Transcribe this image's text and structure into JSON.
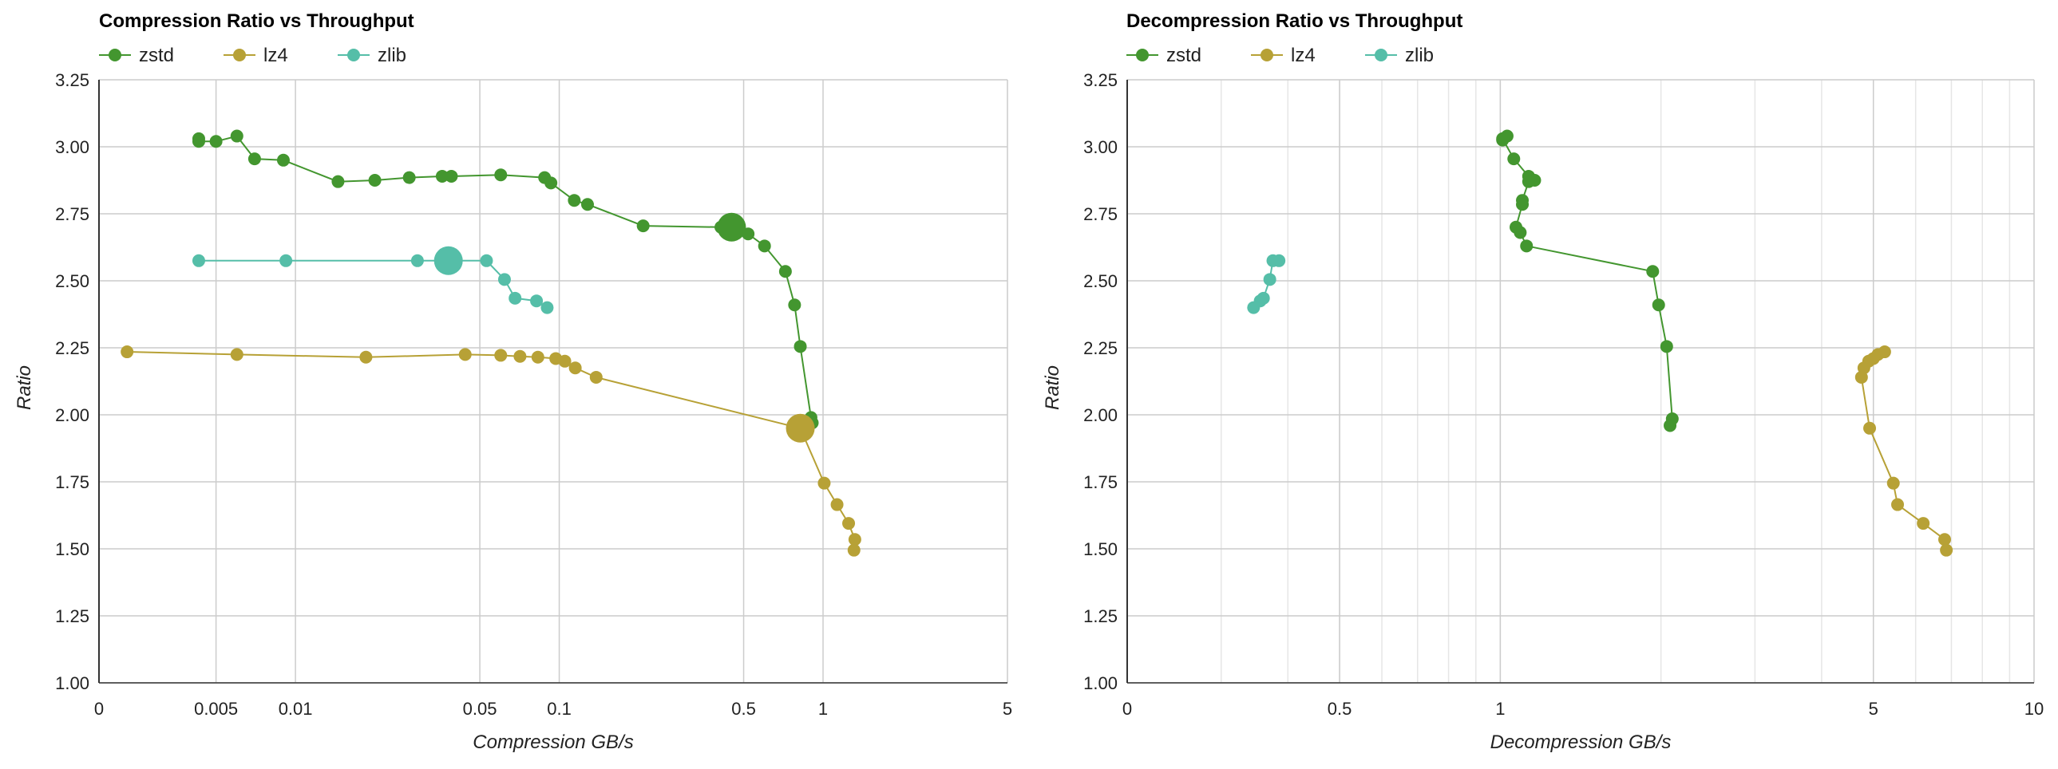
{
  "chart_data": [
    {
      "type": "scatter",
      "title": "Compression Ratio vs Throughput",
      "xlabel": "Compression GB/s",
      "ylabel": "Ratio",
      "xscale": "log",
      "ylim": [
        1.0,
        3.25
      ],
      "yticks": [
        "1.00",
        "1.25",
        "1.50",
        "1.75",
        "2.00",
        "2.25",
        "2.50",
        "2.75",
        "3.00",
        "3.25"
      ],
      "xticks": [
        {
          "value": 0.0018,
          "label": "0"
        },
        {
          "value": 0.005,
          "label": "0.005"
        },
        {
          "value": 0.01,
          "label": "0.01"
        },
        {
          "value": 0.05,
          "label": "0.05"
        },
        {
          "value": 0.1,
          "label": "0.1"
        },
        {
          "value": 0.5,
          "label": "0.5"
        },
        {
          "value": 1,
          "label": "1"
        },
        {
          "value": 5,
          "label": "5"
        }
      ],
      "xlim": [
        0.0018,
        5
      ],
      "grid": true,
      "legend_position": "top-left",
      "series": [
        {
          "name": "zstd",
          "color": "#43962f",
          "points": [
            [
              0.0043,
              3.03
            ],
            [
              0.0043,
              3.02
            ],
            [
              0.005,
              3.02
            ],
            [
              0.006,
              3.04
            ],
            [
              0.007,
              2.955
            ],
            [
              0.009,
              2.95
            ],
            [
              0.0145,
              2.87
            ],
            [
              0.02,
              2.875
            ],
            [
              0.027,
              2.885
            ],
            [
              0.036,
              2.89
            ],
            [
              0.039,
              2.89
            ],
            [
              0.06,
              2.895
            ],
            [
              0.088,
              2.885
            ],
            [
              0.093,
              2.865
            ],
            [
              0.114,
              2.8
            ],
            [
              0.128,
              2.785
            ],
            [
              0.208,
              2.705
            ],
            [
              0.41,
              2.7
            ],
            [
              0.45,
              2.7
            ],
            [
              0.52,
              2.675
            ],
            [
              0.6,
              2.63
            ],
            [
              0.72,
              2.535
            ],
            [
              0.78,
              2.41
            ],
            [
              0.82,
              2.255
            ],
            [
              0.9,
              1.99
            ],
            [
              0.91,
              1.97
            ]
          ],
          "highlight": [
            0.45,
            2.7
          ]
        },
        {
          "name": "lz4",
          "color": "#b7a136",
          "points": [
            [
              0.0023,
              2.235
            ],
            [
              0.006,
              2.225
            ],
            [
              0.0185,
              2.215
            ],
            [
              0.044,
              2.225
            ],
            [
              0.06,
              2.222
            ],
            [
              0.071,
              2.218
            ],
            [
              0.083,
              2.215
            ],
            [
              0.097,
              2.21
            ],
            [
              0.105,
              2.2
            ],
            [
              0.115,
              2.175
            ],
            [
              0.138,
              2.14
            ],
            [
              0.82,
              1.95
            ],
            [
              1.01,
              1.745
            ],
            [
              1.13,
              1.665
            ],
            [
              1.25,
              1.595
            ],
            [
              1.32,
              1.535
            ],
            [
              1.31,
              1.495
            ]
          ],
          "highlight": [
            0.82,
            1.95
          ]
        },
        {
          "name": "zlib",
          "color": "#55bea8",
          "points": [
            [
              0.0043,
              2.575
            ],
            [
              0.0092,
              2.575
            ],
            [
              0.029,
              2.575
            ],
            [
              0.038,
              2.575
            ],
            [
              0.053,
              2.575
            ],
            [
              0.062,
              2.505
            ],
            [
              0.068,
              2.435
            ],
            [
              0.082,
              2.425
            ],
            [
              0.09,
              2.4
            ]
          ],
          "highlight": [
            0.038,
            2.575
          ]
        }
      ]
    },
    {
      "type": "scatter",
      "title": "Decompression Ratio vs Throughput",
      "xlabel": "Decompression GB/s",
      "ylabel": "Ratio",
      "xscale": "log",
      "ylim": [
        1.0,
        3.25
      ],
      "yticks": [
        "1.00",
        "1.25",
        "1.50",
        "1.75",
        "2.00",
        "2.25",
        "2.50",
        "2.75",
        "3.00",
        "3.25"
      ],
      "xticks": [
        {
          "value": 0.2,
          "label": "0"
        },
        {
          "value": 0.5,
          "label": "0.5"
        },
        {
          "value": 1,
          "label": "1"
        },
        {
          "value": 5,
          "label": "5"
        },
        {
          "value": 10,
          "label": "10"
        }
      ],
      "xlim": [
        0.2,
        10
      ],
      "grid": true,
      "legend_position": "top-left",
      "series": [
        {
          "name": "zstd",
          "color": "#43962f",
          "points": [
            [
              1.01,
              3.025
            ],
            [
              1.03,
              3.04
            ],
            [
              1.01,
              3.03
            ],
            [
              1.06,
              2.955
            ],
            [
              1.13,
              2.89
            ],
            [
              1.16,
              2.875
            ],
            [
              1.13,
              2.87
            ],
            [
              1.1,
              2.8
            ],
            [
              1.1,
              2.785
            ],
            [
              1.07,
              2.7
            ],
            [
              1.09,
              2.68
            ],
            [
              1.12,
              2.63
            ],
            [
              1.93,
              2.535
            ],
            [
              1.98,
              2.41
            ],
            [
              2.05,
              2.255
            ],
            [
              2.1,
              1.985
            ],
            [
              2.08,
              1.96
            ]
          ]
        },
        {
          "name": "lz4",
          "color": "#b7a136",
          "points": [
            [
              5.25,
              2.235
            ],
            [
              5.1,
              2.225
            ],
            [
              5.0,
              2.21
            ],
            [
              4.9,
              2.2
            ],
            [
              4.8,
              2.175
            ],
            [
              4.75,
              2.14
            ],
            [
              4.92,
              1.95
            ],
            [
              5.45,
              1.745
            ],
            [
              5.55,
              1.665
            ],
            [
              6.2,
              1.595
            ],
            [
              6.8,
              1.535
            ],
            [
              6.85,
              1.495
            ]
          ]
        },
        {
          "name": "zlib",
          "color": "#55bea8",
          "points": [
            [
              0.385,
              2.575
            ],
            [
              0.375,
              2.575
            ],
            [
              0.37,
              2.505
            ],
            [
              0.36,
              2.435
            ],
            [
              0.355,
              2.425
            ],
            [
              0.345,
              2.4
            ]
          ]
        }
      ]
    }
  ]
}
